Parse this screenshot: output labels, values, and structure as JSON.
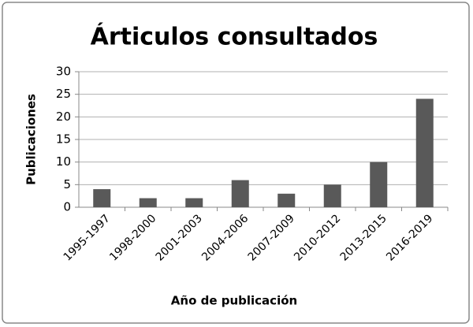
{
  "chart_data": {
    "type": "bar",
    "title": "Árticulos consultados",
    "x_label": "Año de publicación",
    "y_label": "Publicaciones",
    "categories": [
      "1995-1997",
      "1998-2000",
      "2001-2003",
      "2004-2006",
      "2007-2009",
      "2010-2012",
      "2013-2015",
      "2016-2019"
    ],
    "values": [
      4,
      2,
      2,
      6,
      3,
      5,
      10,
      24
    ],
    "color": "#595959",
    "ylim": [
      0,
      30
    ],
    "yticks": [
      0,
      5,
      10,
      15,
      20,
      25,
      30
    ],
    "grid": true
  }
}
